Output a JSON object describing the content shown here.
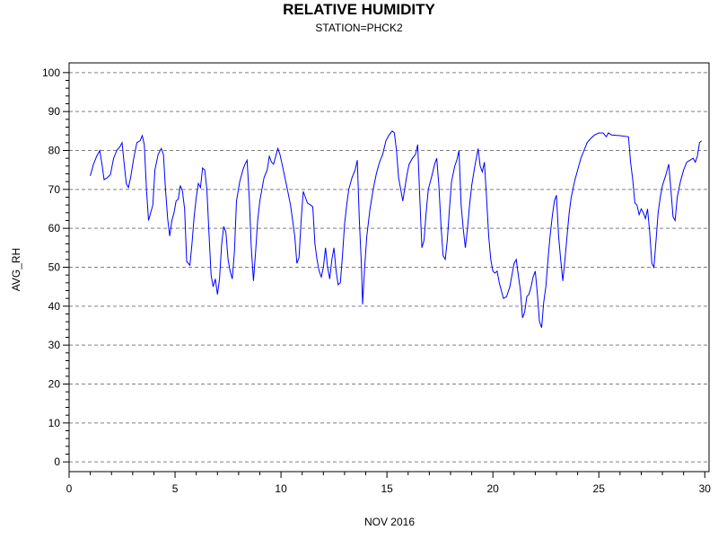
{
  "chart_data": {
    "type": "line",
    "title": "RELATIVE HUMIDITY",
    "subtitle": "STATION=PHCK2",
    "xlabel": "NOV 2016",
    "ylabel": "AVG_RH",
    "xlim": [
      0,
      30.2
    ],
    "ylim": [
      -2.5,
      102.5
    ],
    "xticks": [
      0,
      5,
      10,
      15,
      20,
      25,
      30
    ],
    "yticks": [
      0,
      10,
      20,
      30,
      40,
      50,
      60,
      70,
      80,
      90,
      100
    ],
    "grid": "horizontal dashed",
    "series_color": "#0000ff",
    "grid_color": "#808080",
    "series": [
      {
        "points": [
          [
            1.0,
            73.5
          ],
          [
            1.15,
            76.5
          ],
          [
            1.3,
            78.5
          ],
          [
            1.45,
            80.0
          ],
          [
            1.55,
            76.5
          ],
          [
            1.65,
            72.5
          ],
          [
            1.8,
            73.0
          ],
          [
            1.95,
            73.8
          ],
          [
            2.1,
            78.0
          ],
          [
            2.25,
            80.0
          ],
          [
            2.4,
            81.0
          ],
          [
            2.5,
            82.0
          ],
          [
            2.6,
            76.5
          ],
          [
            2.7,
            71.5
          ],
          [
            2.8,
            70.5
          ],
          [
            2.9,
            73.0
          ],
          [
            3.05,
            78.0
          ],
          [
            3.2,
            82.0
          ],
          [
            3.35,
            82.5
          ],
          [
            3.45,
            83.8
          ],
          [
            3.55,
            81.5
          ],
          [
            3.65,
            70.0
          ],
          [
            3.75,
            62.0
          ],
          [
            3.85,
            64.0
          ],
          [
            3.95,
            66.0
          ],
          [
            4.05,
            75.0
          ],
          [
            4.2,
            79.0
          ],
          [
            4.35,
            80.5
          ],
          [
            4.45,
            79.0
          ],
          [
            4.55,
            70.0
          ],
          [
            4.65,
            62.5
          ],
          [
            4.75,
            58.0
          ],
          [
            4.85,
            62.0
          ],
          [
            4.95,
            64.0
          ],
          [
            5.05,
            67.0
          ],
          [
            5.15,
            67.5
          ],
          [
            5.25,
            71.0
          ],
          [
            5.35,
            69.5
          ],
          [
            5.45,
            65.0
          ],
          [
            5.55,
            51.5
          ],
          [
            5.7,
            50.5
          ],
          [
            5.8,
            56.0
          ],
          [
            5.9,
            63.0
          ],
          [
            6.0,
            68.0
          ],
          [
            6.1,
            71.5
          ],
          [
            6.2,
            70.5
          ],
          [
            6.3,
            75.5
          ],
          [
            6.4,
            75.0
          ],
          [
            6.5,
            70.0
          ],
          [
            6.6,
            59.0
          ],
          [
            6.7,
            48.0
          ],
          [
            6.8,
            45.0
          ],
          [
            6.9,
            47.0
          ],
          [
            7.0,
            43.0
          ],
          [
            7.1,
            47.0
          ],
          [
            7.2,
            56.0
          ],
          [
            7.3,
            60.5
          ],
          [
            7.4,
            59.0
          ],
          [
            7.5,
            52.0
          ],
          [
            7.6,
            49.0
          ],
          [
            7.7,
            47.0
          ],
          [
            7.8,
            54.0
          ],
          [
            7.9,
            67.0
          ],
          [
            8.05,
            72.0
          ],
          [
            8.2,
            75.0
          ],
          [
            8.3,
            76.5
          ],
          [
            8.4,
            77.5
          ],
          [
            8.5,
            68.0
          ],
          [
            8.6,
            55.0
          ],
          [
            8.7,
            46.5
          ],
          [
            8.8,
            54.0
          ],
          [
            8.9,
            62.0
          ],
          [
            9.0,
            67.0
          ],
          [
            9.1,
            70.0
          ],
          [
            9.2,
            73.0
          ],
          [
            9.35,
            75.0
          ],
          [
            9.45,
            78.5
          ],
          [
            9.55,
            77.0
          ],
          [
            9.65,
            76.5
          ],
          [
            9.75,
            78.5
          ],
          [
            9.85,
            80.5
          ],
          [
            9.95,
            79.0
          ],
          [
            10.05,
            76.5
          ],
          [
            10.15,
            74.0
          ],
          [
            10.3,
            70.0
          ],
          [
            10.45,
            66.0
          ],
          [
            10.55,
            62.0
          ],
          [
            10.65,
            58.0
          ],
          [
            10.75,
            51.0
          ],
          [
            10.85,
            52.5
          ],
          [
            10.95,
            62.0
          ],
          [
            11.05,
            69.5
          ],
          [
            11.15,
            68.0
          ],
          [
            11.25,
            66.5
          ],
          [
            11.4,
            66.0
          ],
          [
            11.5,
            65.5
          ],
          [
            11.6,
            56.0
          ],
          [
            11.7,
            52.0
          ],
          [
            11.8,
            49.0
          ],
          [
            11.9,
            47.5
          ],
          [
            12.0,
            50.0
          ],
          [
            12.1,
            55.0
          ],
          [
            12.2,
            50.0
          ],
          [
            12.3,
            47.0
          ],
          [
            12.4,
            52.0
          ],
          [
            12.5,
            55.0
          ],
          [
            12.6,
            49.0
          ],
          [
            12.7,
            45.5
          ],
          [
            12.8,
            46.0
          ],
          [
            12.9,
            53.0
          ],
          [
            13.0,
            61.0
          ],
          [
            13.1,
            66.0
          ],
          [
            13.2,
            70.0
          ],
          [
            13.35,
            73.0
          ],
          [
            13.5,
            75.0
          ],
          [
            13.6,
            77.5
          ],
          [
            13.7,
            62.0
          ],
          [
            13.8,
            50.0
          ],
          [
            13.85,
            40.5
          ],
          [
            13.95,
            50.0
          ],
          [
            14.05,
            58.0
          ],
          [
            14.2,
            65.0
          ],
          [
            14.35,
            70.0
          ],
          [
            14.5,
            74.0
          ],
          [
            14.65,
            77.0
          ],
          [
            14.8,
            79.0
          ],
          [
            14.95,
            82.5
          ],
          [
            15.1,
            84.0
          ],
          [
            15.25,
            85.0
          ],
          [
            15.35,
            84.5
          ],
          [
            15.45,
            80.0
          ],
          [
            15.55,
            73.0
          ],
          [
            15.65,
            70.0
          ],
          [
            15.75,
            67.0
          ],
          [
            15.85,
            70.5
          ],
          [
            15.95,
            74.0
          ],
          [
            16.05,
            76.5
          ],
          [
            16.2,
            78.0
          ],
          [
            16.35,
            79.0
          ],
          [
            16.45,
            81.5
          ],
          [
            16.55,
            68.0
          ],
          [
            16.65,
            55.0
          ],
          [
            16.75,
            57.0
          ],
          [
            16.85,
            64.0
          ],
          [
            16.95,
            70.0
          ],
          [
            17.1,
            73.0
          ],
          [
            17.25,
            76.5
          ],
          [
            17.35,
            78.0
          ],
          [
            17.45,
            71.0
          ],
          [
            17.55,
            61.0
          ],
          [
            17.65,
            53.0
          ],
          [
            17.75,
            52.0
          ],
          [
            17.85,
            57.0
          ],
          [
            17.95,
            65.0
          ],
          [
            18.05,
            72.0
          ],
          [
            18.2,
            76.0
          ],
          [
            18.3,
            77.5
          ],
          [
            18.4,
            80.0
          ],
          [
            18.5,
            66.0
          ],
          [
            18.6,
            60.0
          ],
          [
            18.7,
            55.0
          ],
          [
            18.8,
            60.0
          ],
          [
            18.9,
            66.0
          ],
          [
            19.0,
            71.0
          ],
          [
            19.15,
            76.0
          ],
          [
            19.3,
            80.5
          ],
          [
            19.4,
            76.0
          ],
          [
            19.5,
            74.5
          ],
          [
            19.6,
            77.0
          ],
          [
            19.7,
            68.0
          ],
          [
            19.8,
            58.0
          ],
          [
            19.9,
            52.0
          ],
          [
            20.0,
            49.0
          ],
          [
            20.1,
            48.5
          ],
          [
            20.2,
            49.0
          ],
          [
            20.3,
            46.0
          ],
          [
            20.4,
            44.0
          ],
          [
            20.5,
            42.0
          ],
          [
            20.65,
            42.5
          ],
          [
            20.8,
            45.0
          ],
          [
            20.9,
            48.0
          ],
          [
            21.0,
            51.0
          ],
          [
            21.1,
            52.0
          ],
          [
            21.2,
            48.0
          ],
          [
            21.3,
            44.0
          ],
          [
            21.4,
            37.0
          ],
          [
            21.5,
            38.5
          ],
          [
            21.6,
            42.5
          ],
          [
            21.7,
            43.0
          ],
          [
            21.8,
            45.0
          ],
          [
            21.9,
            47.5
          ],
          [
            22.0,
            49.0
          ],
          [
            22.1,
            43.0
          ],
          [
            22.2,
            36.0
          ],
          [
            22.3,
            34.5
          ],
          [
            22.4,
            41.0
          ],
          [
            22.5,
            45.0
          ],
          [
            22.6,
            52.0
          ],
          [
            22.7,
            58.0
          ],
          [
            22.8,
            63.0
          ],
          [
            22.9,
            67.0
          ],
          [
            23.0,
            68.5
          ],
          [
            23.1,
            58.0
          ],
          [
            23.2,
            52.0
          ],
          [
            23.3,
            46.5
          ],
          [
            23.4,
            52.0
          ],
          [
            23.5,
            58.0
          ],
          [
            23.6,
            64.0
          ],
          [
            23.7,
            68.0
          ],
          [
            23.85,
            72.0
          ],
          [
            24.0,
            75.0
          ],
          [
            24.15,
            78.0
          ],
          [
            24.3,
            80.0
          ],
          [
            24.45,
            82.0
          ],
          [
            24.6,
            83.0
          ],
          [
            24.8,
            84.0
          ],
          [
            25.0,
            84.5
          ],
          [
            25.2,
            84.5
          ],
          [
            25.35,
            83.5
          ],
          [
            25.45,
            84.5
          ],
          [
            25.6,
            84.0
          ],
          [
            26.0,
            83.8
          ],
          [
            26.4,
            83.5
          ],
          [
            26.5,
            77.0
          ],
          [
            26.6,
            72.5
          ],
          [
            26.7,
            66.5
          ],
          [
            26.8,
            66.0
          ],
          [
            26.9,
            63.5
          ],
          [
            27.0,
            65.0
          ],
          [
            27.1,
            64.0
          ],
          [
            27.2,
            62.5
          ],
          [
            27.3,
            65.0
          ],
          [
            27.4,
            59.0
          ],
          [
            27.5,
            51.0
          ],
          [
            27.6,
            50.0
          ],
          [
            27.7,
            57.0
          ],
          [
            27.8,
            64.0
          ],
          [
            27.9,
            68.0
          ],
          [
            28.0,
            71.0
          ],
          [
            28.15,
            73.5
          ],
          [
            28.3,
            76.5
          ],
          [
            28.4,
            70.0
          ],
          [
            28.5,
            63.0
          ],
          [
            28.6,
            62.0
          ],
          [
            28.7,
            68.0
          ],
          [
            28.85,
            72.0
          ],
          [
            29.0,
            75.0
          ],
          [
            29.15,
            77.0
          ],
          [
            29.3,
            77.5
          ],
          [
            29.45,
            78.0
          ],
          [
            29.55,
            77.0
          ],
          [
            29.65,
            78.5
          ],
          [
            29.75,
            82.0
          ],
          [
            29.85,
            82.5
          ]
        ]
      }
    ]
  }
}
